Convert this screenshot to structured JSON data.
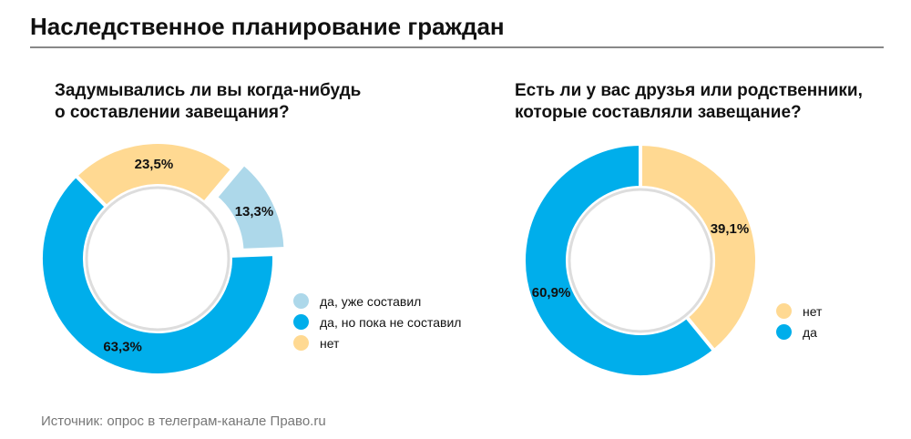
{
  "title": "Наследственное планирование граждан",
  "source": "Источник: опрос в телеграм-канале Право.ru",
  "chart_data": [
    {
      "type": "pie",
      "title": "Задумывались ли вы когда-нибудь о составлении завещания?",
      "title_lines": [
        "Задумывались ли вы когда-нибудь",
        "о составлении завещания?"
      ],
      "slices": [
        {
          "label": "да, уже составил",
          "value": 13.3,
          "display": "13,3%",
          "color": "#add8ea",
          "exploded": true
        },
        {
          "label": "да, но пока не составил",
          "value": 63.3,
          "display": "63,3%",
          "color": "#00aeeb"
        },
        {
          "label": "нет",
          "value": 23.5,
          "display": "23,5%",
          "color": "#ffd992"
        }
      ]
    },
    {
      "type": "pie",
      "title": "Есть ли у вас друзья или родственники, которые составляли завещание?",
      "title_lines": [
        "Есть ли у вас друзья или родственники,",
        "которые составляли завещание?"
      ],
      "slices": [
        {
          "label": "нет",
          "value": 39.1,
          "display": "39,1%",
          "color": "#ffd992"
        },
        {
          "label": "да",
          "value": 60.9,
          "display": "60,9%",
          "color": "#00aeeb"
        }
      ]
    }
  ]
}
